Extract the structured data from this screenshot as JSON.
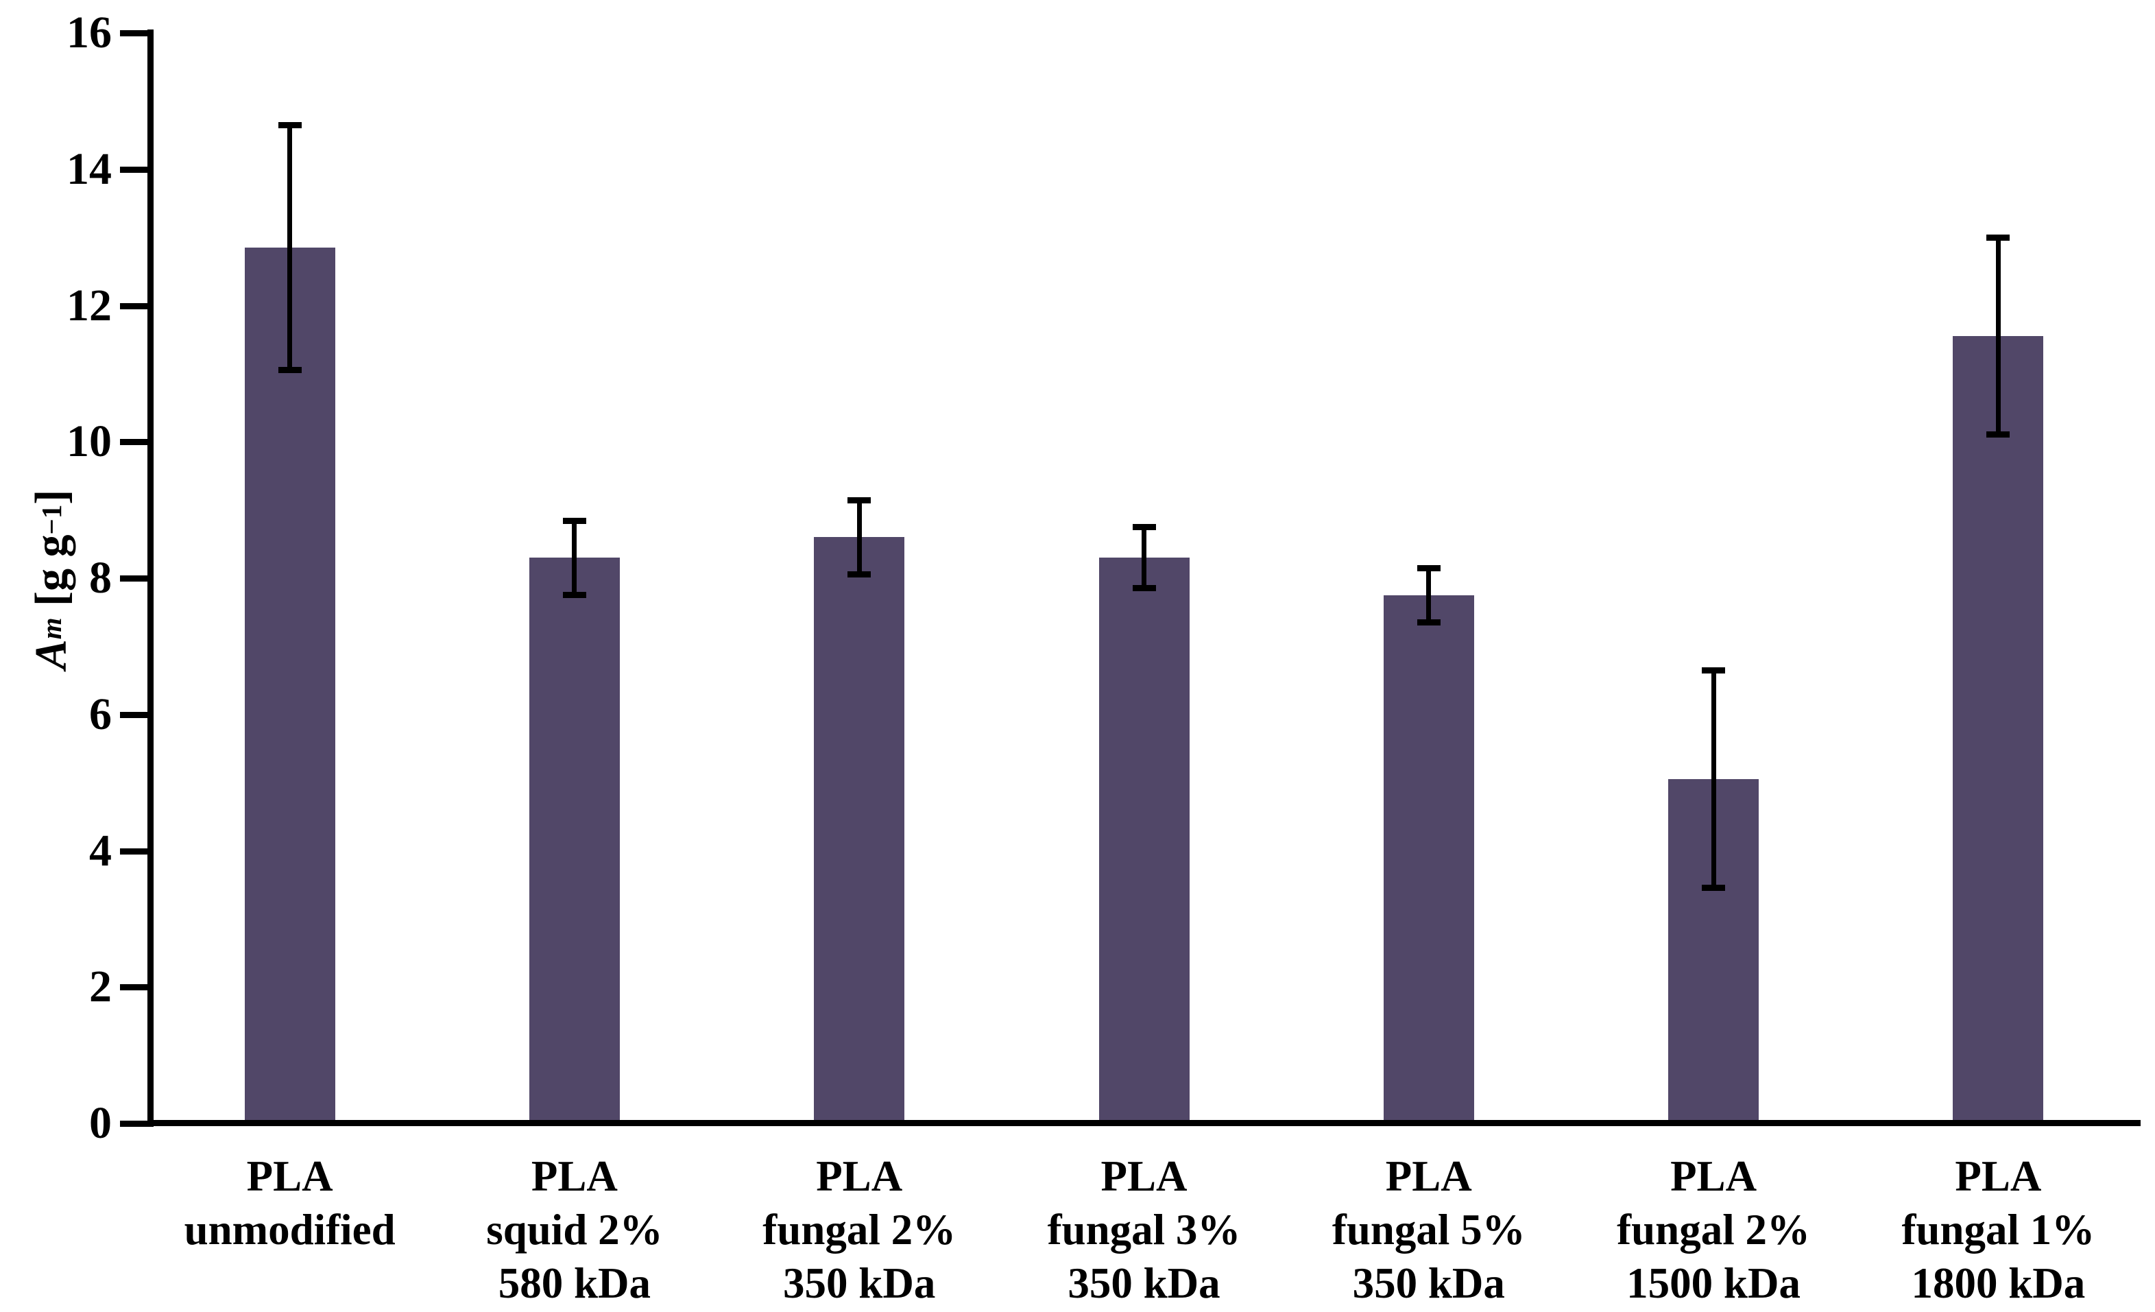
{
  "chart_data": {
    "type": "bar",
    "title": "",
    "ylabel": {
      "symbol": "A",
      "subscript": "m",
      "unit_prefix": " [g g",
      "unit_exponent": "−1",
      "unit_suffix": "]"
    },
    "ylim": [
      0,
      16
    ],
    "y_ticks": [
      0,
      2,
      4,
      6,
      8,
      10,
      12,
      14,
      16
    ],
    "grid": "off",
    "legend": "none",
    "categories": [
      {
        "lines": [
          "PLA",
          "unmodified"
        ]
      },
      {
        "lines": [
          "PLA",
          "squid 2%",
          "580 kDa"
        ]
      },
      {
        "lines": [
          "PLA",
          "fungal 2%",
          "350 kDa"
        ]
      },
      {
        "lines": [
          "PLA",
          "fungal 3%",
          "350 kDa"
        ]
      },
      {
        "lines": [
          "PLA",
          "fungal 5%",
          "350 kDa"
        ]
      },
      {
        "lines": [
          "PLA",
          "fungal 2%",
          "1500 kDa"
        ]
      },
      {
        "lines": [
          "PLA",
          "fungal 1%",
          "1800 kDa"
        ]
      }
    ],
    "values": [
      12.85,
      8.3,
      8.6,
      8.3,
      7.75,
      5.05,
      11.55
    ],
    "errors": [
      1.8,
      0.55,
      0.55,
      0.45,
      0.4,
      1.6,
      1.45
    ],
    "colors": {
      "bar_fill": "#514768",
      "axis": "#000000",
      "text": "#000000",
      "background": "#ffffff"
    }
  }
}
